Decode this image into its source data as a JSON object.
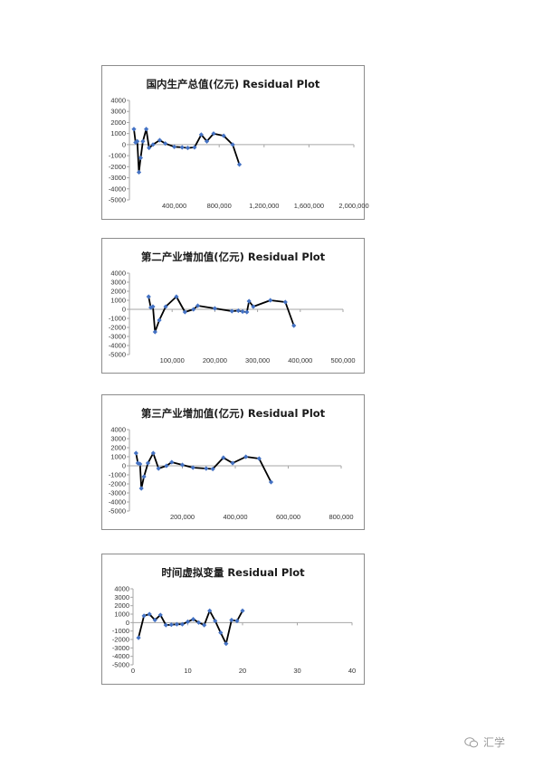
{
  "watermark": {
    "text": "汇学",
    "icon": "wechat-icon"
  },
  "colors": {
    "line": "#000000",
    "marker": "#4472c4",
    "axis": "#a6a6a6",
    "tick_text": "#333333"
  },
  "chart_data": [
    {
      "type": "line",
      "title": "国内生产总值(亿元)  Residual Plot",
      "xlabel": "",
      "ylabel": "",
      "xlim": [
        0,
        2000000
      ],
      "xticks": [
        400000,
        800000,
        1200000,
        1600000,
        2000000
      ],
      "xticklabels": [
        "400,000",
        "800,000",
        "1,200,000",
        "1,600,000",
        "2,000,000"
      ],
      "ylim": [
        -5000,
        4000
      ],
      "yticks": [
        4000,
        3000,
        2000,
        1000,
        0,
        -1000,
        -2000,
        -3000,
        -4000,
        -5000
      ],
      "series": [
        {
          "x": [
            40000,
            55000,
            70000,
            85000,
            100000,
            120000,
            150000,
            175000,
            210000,
            270000,
            320000,
            400000,
            470000,
            520000,
            580000,
            640000,
            690000,
            750000,
            840000,
            920000,
            980000
          ],
          "y": [
            1400,
            200,
            300,
            -2500,
            -1200,
            300,
            1400,
            -300,
            0,
            400,
            100,
            -200,
            -250,
            -300,
            -250,
            900,
            300,
            1000,
            800,
            0,
            -1800
          ]
        }
      ]
    },
    {
      "type": "line",
      "title": "第二产业增加值(亿元)  Residual Plot",
      "xlabel": "",
      "ylabel": "",
      "xlim": [
        0,
        500000
      ],
      "xticks": [
        100000,
        200000,
        300000,
        400000,
        500000
      ],
      "xticklabels": [
        "100,000",
        "200,000",
        "300,000",
        "400,000",
        "500,000"
      ],
      "ylim": [
        -5000,
        4000
      ],
      "yticks": [
        4000,
        3000,
        2000,
        1000,
        0,
        -1000,
        -2000,
        -3000,
        -4000,
        -5000
      ],
      "series": [
        {
          "x": [
            45000,
            50000,
            55000,
            60000,
            70000,
            85000,
            110000,
            130000,
            150000,
            160000,
            200000,
            240000,
            255000,
            265000,
            275000,
            280000,
            290000,
            330000,
            365000,
            385000
          ],
          "y": [
            1400,
            200,
            300,
            -2500,
            -1200,
            300,
            1400,
            -300,
            0,
            400,
            100,
            -200,
            -150,
            -250,
            -300,
            900,
            300,
            1000,
            800,
            -1800
          ]
        }
      ]
    },
    {
      "type": "line",
      "title": "第三产业增加值(亿元)  Residual Plot",
      "xlabel": "",
      "ylabel": "",
      "xlim": [
        0,
        800000
      ],
      "xticks": [
        200000,
        400000,
        600000,
        800000
      ],
      "xticklabels": [
        "200,000",
        "400,000",
        "600,000",
        "800,000"
      ],
      "ylim": [
        -5000,
        4000
      ],
      "yticks": [
        4000,
        3000,
        2000,
        1000,
        0,
        -1000,
        -2000,
        -3000,
        -4000,
        -5000
      ],
      "series": [
        {
          "x": [
            25000,
            32000,
            40000,
            45000,
            55000,
            70000,
            90000,
            110000,
            140000,
            160000,
            200000,
            240000,
            290000,
            315000,
            355000,
            390000,
            440000,
            490000,
            535000
          ],
          "y": [
            1400,
            300,
            200,
            -2500,
            -1200,
            300,
            1400,
            -300,
            0,
            400,
            100,
            -200,
            -300,
            -350,
            900,
            300,
            1000,
            800,
            -1800
          ]
        }
      ]
    },
    {
      "type": "line",
      "title": "时间虚拟变量  Residual Plot",
      "xlabel": "",
      "ylabel": "",
      "xlim": [
        0,
        40
      ],
      "xticks": [
        0,
        10,
        20,
        30,
        40
      ],
      "xticklabels": [
        "0",
        "10",
        "20",
        "30",
        "40"
      ],
      "ylim": [
        -5000,
        4000
      ],
      "yticks": [
        4000,
        3000,
        2000,
        1000,
        0,
        -1000,
        -2000,
        -3000,
        -4000,
        -5000
      ],
      "series": [
        {
          "x": [
            1,
            2,
            3,
            4,
            5,
            6,
            7,
            8,
            9,
            10,
            11,
            12,
            13,
            14,
            15,
            16,
            17,
            18,
            19,
            20
          ],
          "y": [
            -1800,
            800,
            1000,
            300,
            900,
            -300,
            -250,
            -200,
            -200,
            100,
            400,
            0,
            -300,
            1400,
            200,
            -1200,
            -2500,
            300,
            200,
            1400
          ]
        }
      ]
    }
  ]
}
